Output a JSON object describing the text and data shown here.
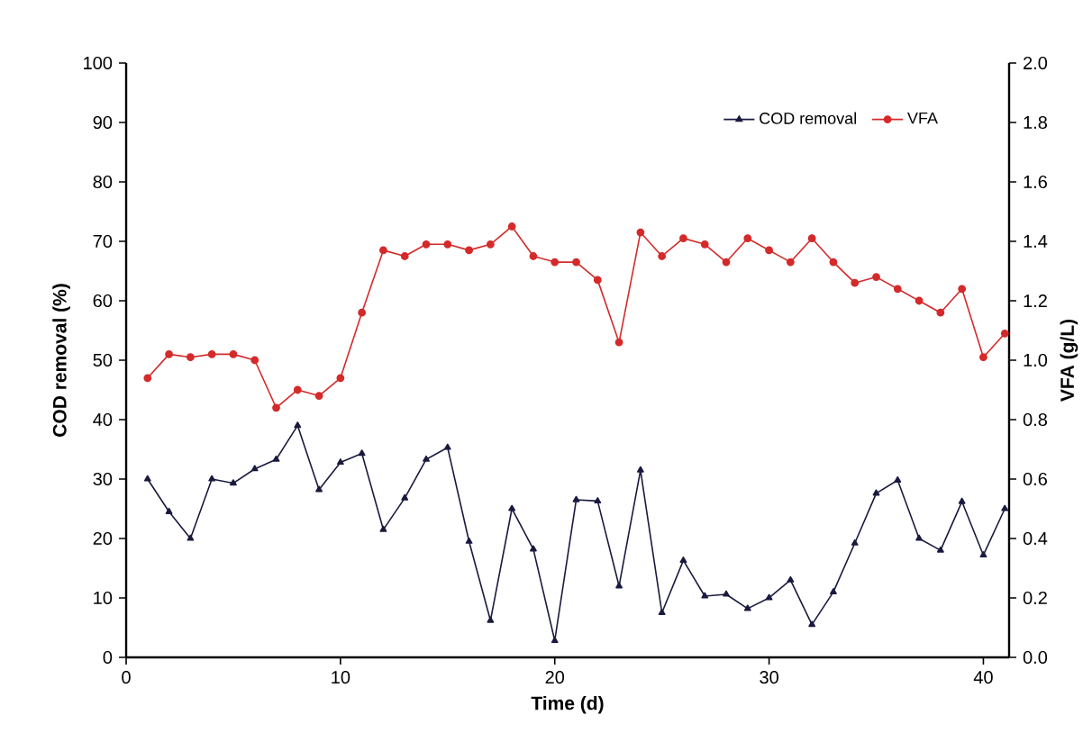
{
  "chart_data": {
    "type": "line",
    "xlabel": "Time (d)",
    "ylabel": "COD removal (%)",
    "y2label": "VFA (g/L)",
    "x": [
      1,
      2,
      3,
      4,
      5,
      6,
      7,
      8,
      9,
      10,
      11,
      12,
      13,
      14,
      15,
      16,
      17,
      18,
      19,
      20,
      21,
      22,
      23,
      24,
      25,
      26,
      27,
      28,
      29,
      30,
      31,
      32,
      33,
      34,
      35,
      36,
      37,
      38,
      39,
      40,
      41
    ],
    "series": [
      {
        "name": "COD removal",
        "color": "#1a1a40",
        "marker": "triangle",
        "values": [
          30,
          24.5,
          20,
          30,
          29.3,
          31.7,
          33.3,
          39,
          28.2,
          32.8,
          34.3,
          21.5,
          26.8,
          33.3,
          35.3,
          19.5,
          6.2,
          25,
          18.2,
          2.8,
          26.5,
          26.3,
          12,
          31.5,
          7.5,
          16.3,
          10.3,
          10.6,
          8.2,
          10,
          13,
          5.5,
          11,
          19.2,
          27.6,
          29.8,
          20,
          18,
          26.2,
          17.2,
          25
        ]
      },
      {
        "name": "VFA",
        "color": "#d42a2a",
        "marker": "circle",
        "axis": "y2",
        "values": [
          0.94,
          1.02,
          1.01,
          1.02,
          1.02,
          1.0,
          0.84,
          0.9,
          0.88,
          0.94,
          1.16,
          1.37,
          1.35,
          1.39,
          1.39,
          1.37,
          1.39,
          1.45,
          1.35,
          1.33,
          1.33,
          1.27,
          1.06,
          1.43,
          1.35,
          1.41,
          1.39,
          1.33,
          1.41,
          1.37,
          1.33,
          1.41,
          1.33,
          1.26,
          1.28,
          1.24,
          1.2,
          1.16,
          1.24,
          1.01,
          1.09
        ]
      }
    ],
    "xlim": [
      0,
      41.2
    ],
    "xticks": [
      0,
      10,
      20,
      30,
      40
    ],
    "ylim": [
      0,
      100
    ],
    "yticks": [
      0,
      10,
      20,
      30,
      40,
      50,
      60,
      70,
      80,
      90,
      100
    ],
    "y2lim": [
      0,
      2
    ],
    "y2ticks": [
      {
        "value": 0,
        "label": "0.0"
      },
      {
        "value": 0.2,
        "label": "0.2"
      },
      {
        "value": 0.4,
        "label": "0.4"
      },
      {
        "value": 0.6,
        "label": "0.6"
      },
      {
        "value": 0.8,
        "label": "0.8"
      },
      {
        "value": 1.0,
        "label": "1.0"
      },
      {
        "value": 1.2,
        "label": "1.2"
      },
      {
        "value": 1.4,
        "label": "1.4"
      },
      {
        "value": 1.6,
        "label": "1.6"
      },
      {
        "value": 1.8,
        "label": "1.8"
      },
      {
        "value": 2.0,
        "label": "2.0"
      }
    ],
    "grid": false,
    "legend": "top right"
  }
}
